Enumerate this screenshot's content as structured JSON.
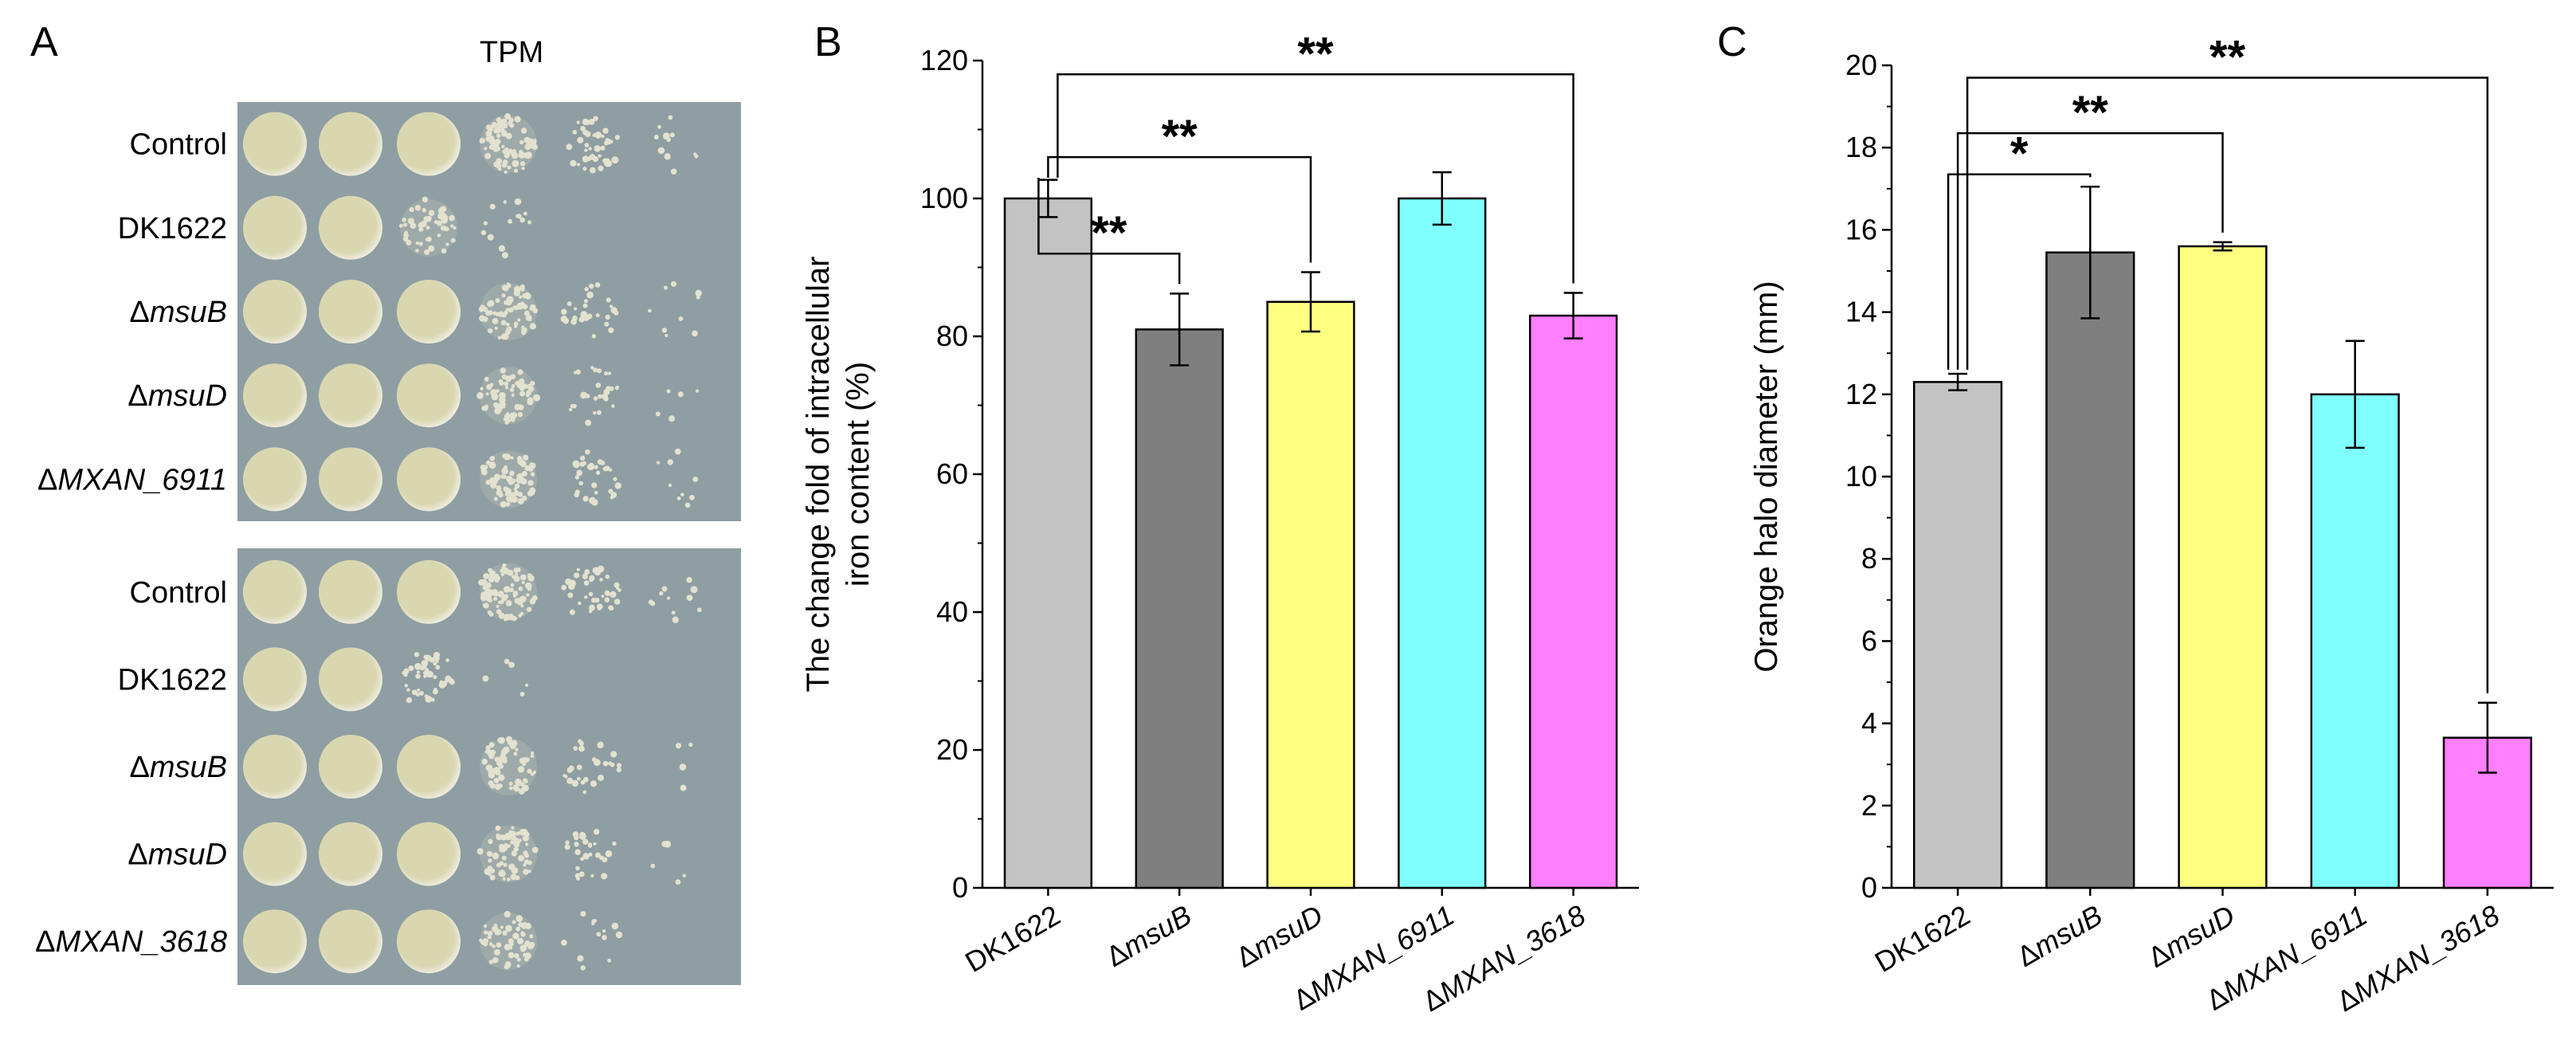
{
  "panel_a": {
    "letter": "A",
    "title": "TPM",
    "plates": [
      {
        "rows": [
          {
            "prefix": "",
            "name": "Control",
            "italic": false,
            "growth": [
              1,
              1,
              1,
              0.85,
              0.45,
              0.12
            ]
          },
          {
            "prefix": "",
            "name": "DK1622",
            "italic": false,
            "growth": [
              1,
              1,
              0.55,
              0.15,
              0,
              0
            ]
          },
          {
            "prefix": "Δ",
            "name": "msuB",
            "italic": true,
            "growth": [
              1,
              1,
              1,
              0.75,
              0.3,
              0.1
            ]
          },
          {
            "prefix": "Δ",
            "name": "msuD",
            "italic": true,
            "growth": [
              1,
              1,
              1,
              0.7,
              0.3,
              0.05
            ]
          },
          {
            "prefix": "Δ",
            "name": "MXAN_6911",
            "italic": true,
            "growth": [
              1,
              1,
              1,
              0.7,
              0.35,
              0.1
            ]
          }
        ]
      },
      {
        "rows": [
          {
            "prefix": "",
            "name": "Control",
            "italic": false,
            "growth": [
              1,
              1,
              1,
              0.85,
              0.45,
              0.12
            ]
          },
          {
            "prefix": "",
            "name": "DK1622",
            "italic": false,
            "growth": [
              1,
              1,
              0.5,
              0.05,
              0,
              0
            ]
          },
          {
            "prefix": "Δ",
            "name": "msuB",
            "italic": true,
            "growth": [
              1,
              1,
              1,
              0.7,
              0.3,
              0.05
            ]
          },
          {
            "prefix": "Δ",
            "name": "msuD",
            "italic": true,
            "growth": [
              1,
              1,
              1,
              0.7,
              0.3,
              0.05
            ]
          },
          {
            "prefix": "Δ",
            "name": "MXAN_3618",
            "italic": true,
            "growth": [
              1,
              1,
              1,
              0.6,
              0.15,
              0
            ]
          }
        ]
      }
    ],
    "colors": {
      "plate": "#8e9ea2",
      "colony": "#d9d7b0",
      "colony_edge": "#eceadb"
    }
  },
  "chart_data": [
    {
      "type": "bar",
      "panel": "B",
      "categories": [
        {
          "prefix": "",
          "name": "DK1622",
          "italic": false
        },
        {
          "prefix": "Δ",
          "name": "msuB",
          "italic": true
        },
        {
          "prefix": "Δ",
          "name": "msuD",
          "italic": true
        },
        {
          "prefix": "Δ",
          "name": "MXAN_6911",
          "italic": true
        },
        {
          "prefix": "Δ",
          "name": "MXAN_3618",
          "italic": true
        }
      ],
      "values": [
        100,
        81,
        85,
        100,
        83
      ],
      "errors": [
        2.7,
        5.2,
        4.3,
        3.8,
        3.3
      ],
      "colors": [
        "#c3c3c3",
        "#7f7f7f",
        "#ffff7f",
        "#80ffff",
        "#ff7fff"
      ],
      "ylabel_lines": [
        "The change fold of intracellular",
        "iron content (%)"
      ],
      "ylim": [
        0,
        120
      ],
      "yticks": [
        0,
        20,
        40,
        60,
        80,
        100,
        120
      ],
      "ytick_labels": [
        "0",
        "20",
        "40",
        "60",
        "80",
        "100",
        "120"
      ],
      "significance": [
        {
          "from": 0,
          "to": 1,
          "label": "**",
          "level": 92,
          "from_tip": 103
        },
        {
          "from": 0,
          "to": 2,
          "label": "**",
          "level": 106,
          "from_tip": 103
        },
        {
          "from": 0,
          "to": 4,
          "label": "**",
          "level": 118,
          "from_tip": 103
        }
      ]
    },
    {
      "type": "bar",
      "panel": "C",
      "categories": [
        {
          "prefix": "",
          "name": "DK1622",
          "italic": false
        },
        {
          "prefix": "Δ",
          "name": "msuB",
          "italic": true
        },
        {
          "prefix": "Δ",
          "name": "msuD",
          "italic": true
        },
        {
          "prefix": "Δ",
          "name": "MXAN_6911",
          "italic": true
        },
        {
          "prefix": "Δ",
          "name": "MXAN_3618",
          "italic": true
        }
      ],
      "values": [
        12.3,
        15.45,
        15.6,
        12.0,
        3.65
      ],
      "errors": [
        0.2,
        1.6,
        0.1,
        1.3,
        0.85
      ],
      "colors": [
        "#c3c3c3",
        "#7f7f7f",
        "#ffff7f",
        "#80ffff",
        "#ff7fff"
      ],
      "ylabel_lines": [
        "Orange halo diameter (mm)"
      ],
      "ylim": [
        0,
        20
      ],
      "yticks": [
        0,
        2,
        4,
        6,
        8,
        10,
        12,
        14,
        16,
        18,
        20
      ],
      "ytick_labels": [
        "0",
        "2",
        "4",
        "6",
        "8",
        "10",
        "12",
        "14",
        "16",
        "18",
        "20"
      ],
      "significance": [
        {
          "from": 0,
          "to": 1,
          "label": "*",
          "level": 17.35,
          "from_tip": 12.6
        },
        {
          "from": 0,
          "to": 2,
          "label": "**",
          "level": 18.35,
          "from_tip": 12.6
        },
        {
          "from": 0,
          "to": 4,
          "label": "**",
          "level": 19.7,
          "from_tip": 12.6
        }
      ]
    }
  ]
}
